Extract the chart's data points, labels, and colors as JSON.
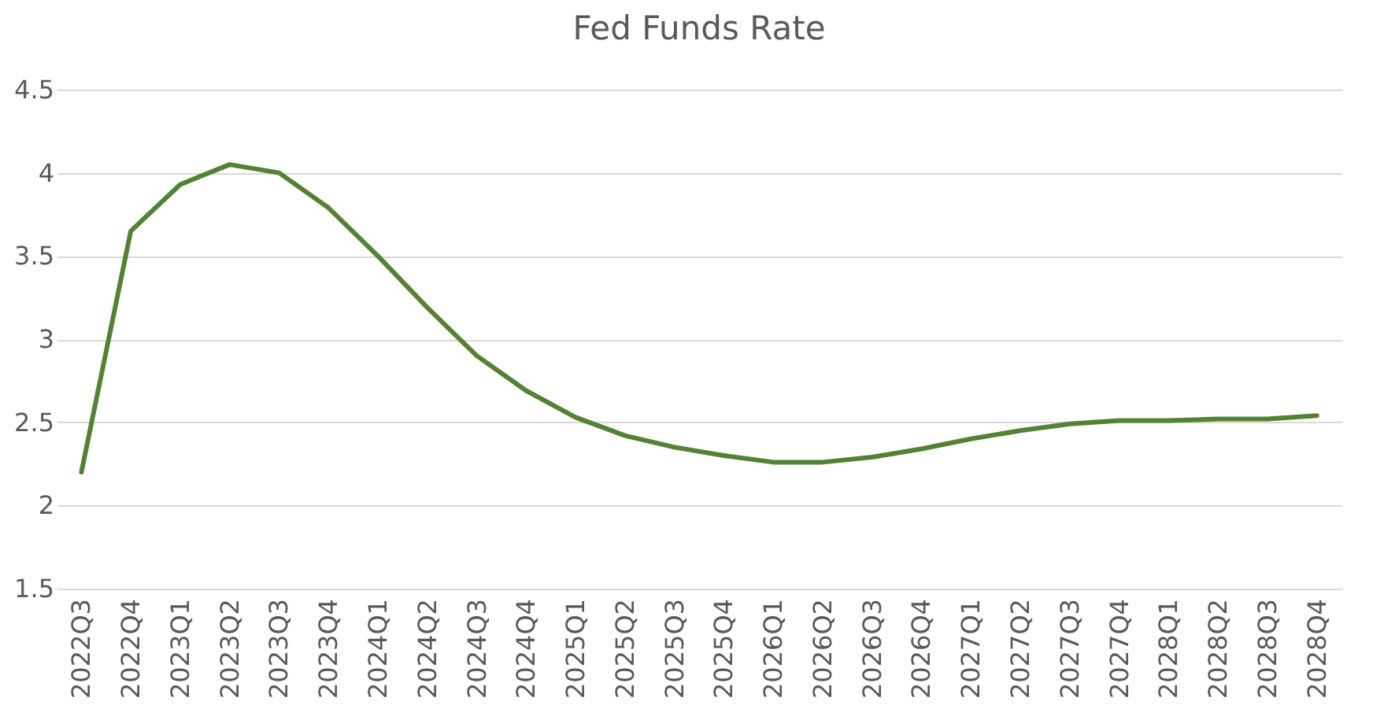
{
  "chart_data": {
    "type": "line",
    "title": "Fed Funds Rate",
    "categories": [
      "2022Q3",
      "2022Q4",
      "2023Q1",
      "2023Q2",
      "2023Q3",
      "2023Q4",
      "2024Q1",
      "2024Q2",
      "2024Q3",
      "2024Q4",
      "2025Q1",
      "2025Q2",
      "2025Q3",
      "2025Q4",
      "2026Q1",
      "2026Q2",
      "2026Q3",
      "2026Q4",
      "2027Q1",
      "2027Q2",
      "2027Q3",
      "2027Q4",
      "2028Q1",
      "2028Q2",
      "2028Q3",
      "2028Q4"
    ],
    "series": [
      {
        "color": "#548235",
        "values": [
          2.2,
          3.65,
          3.93,
          4.05,
          4.0,
          3.79,
          3.5,
          3.19,
          2.9,
          2.69,
          2.53,
          2.42,
          2.35,
          2.3,
          2.26,
          2.26,
          2.29,
          2.34,
          2.4,
          2.45,
          2.49,
          2.51,
          2.51,
          2.52,
          2.52,
          2.54
        ]
      }
    ],
    "ylim": [
      1.5,
      4.5
    ],
    "yticks": [
      1.5,
      2,
      2.5,
      3,
      3.5,
      4,
      4.5
    ],
    "grid": "y",
    "legend": false,
    "marker": "none",
    "line_style": "solid"
  }
}
